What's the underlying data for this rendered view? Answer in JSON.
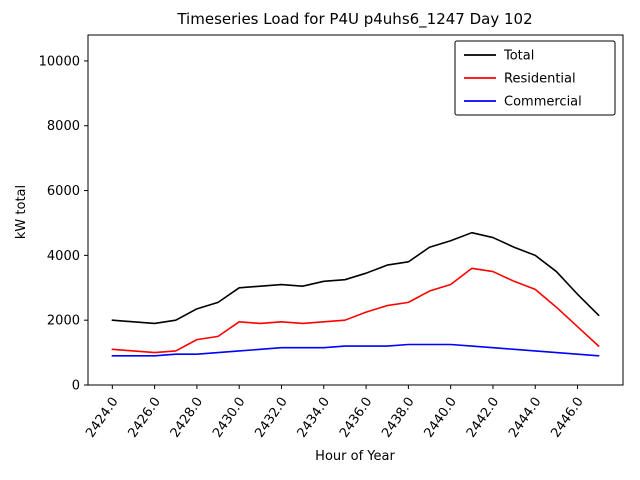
{
  "figure": {
    "title": "Timeseries Load for P4U p4uhs6_1247  Day 102"
  },
  "chart_data": {
    "type": "line",
    "title": "Timeseries Load for P4U p4uhs6_1247  Day 102",
    "xlabel": "Hour of Year",
    "ylabel": "kW total",
    "grid": false,
    "legend_position": "upper right",
    "xlim": [
      2422.85,
      2448.15
    ],
    "ylim": [
      0,
      10800
    ],
    "xticks": [
      2424,
      2426,
      2428,
      2430,
      2432,
      2434,
      2436,
      2438,
      2440,
      2442,
      2444,
      2446
    ],
    "xtick_labels": [
      "2424.0",
      "2426.0",
      "2428.0",
      "2430.0",
      "2432.0",
      "2434.0",
      "2436.0",
      "2438.0",
      "2440.0",
      "2442.0",
      "2444.0",
      "2446.0"
    ],
    "yticks": [
      0,
      2000,
      4000,
      6000,
      8000,
      10000
    ],
    "ytick_labels": [
      "0",
      "2000",
      "4000",
      "6000",
      "8000",
      "10000"
    ],
    "x": [
      2424,
      2425,
      2426,
      2427,
      2428,
      2429,
      2430,
      2431,
      2432,
      2433,
      2434,
      2435,
      2436,
      2437,
      2438,
      2439,
      2440,
      2441,
      2442,
      2443,
      2444,
      2445,
      2446,
      2447
    ],
    "series": [
      {
        "name": "Total",
        "color": "#000000",
        "values": [
          2000,
          1950,
          1900,
          2000,
          2350,
          2550,
          3000,
          3050,
          3100,
          3050,
          3200,
          3250,
          3450,
          3700,
          3800,
          4250,
          4450,
          4700,
          4550,
          4250,
          4000,
          3500,
          2800,
          2150
        ]
      },
      {
        "name": "Residential",
        "color": "#ff0000",
        "values": [
          1100,
          1050,
          1000,
          1050,
          1400,
          1500,
          1950,
          1900,
          1950,
          1900,
          1950,
          2000,
          2250,
          2450,
          2550,
          2900,
          3100,
          3600,
          3500,
          3200,
          2950,
          2400,
          1800,
          1200
        ]
      },
      {
        "name": "Commercial",
        "color": "#0000ff",
        "values": [
          900,
          900,
          900,
          950,
          950,
          1000,
          1050,
          1100,
          1150,
          1150,
          1150,
          1200,
          1200,
          1200,
          1250,
          1250,
          1250,
          1200,
          1150,
          1100,
          1050,
          1000,
          950,
          900
        ]
      }
    ]
  }
}
